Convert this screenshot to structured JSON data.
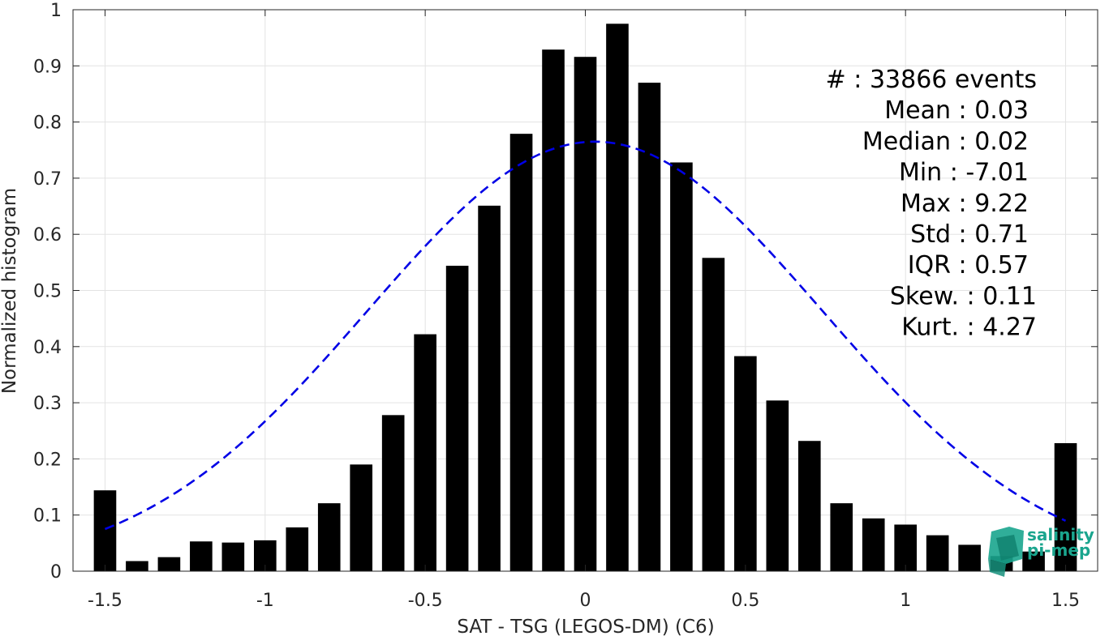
{
  "chart_data": {
    "type": "bar",
    "xlabel": "SAT - TSG (LEGOS-DM) (C6)",
    "ylabel": "Normalized histogram",
    "xlim": [
      -1.6,
      1.6
    ],
    "ylim": [
      0,
      1
    ],
    "xticks": [
      "-1.5",
      "-1",
      "-0.5",
      "0",
      "0.5",
      "1",
      "1.5"
    ],
    "yticks": [
      "0",
      "0.1",
      "0.2",
      "0.3",
      "0.4",
      "0.5",
      "0.6",
      "0.7",
      "0.8",
      "0.9",
      "1"
    ],
    "grid": true,
    "bar_width": 0.07,
    "x": [
      -1.5,
      -1.4,
      -1.3,
      -1.2,
      -1.1,
      -1.0,
      -0.9,
      -0.8,
      -0.7,
      -0.6,
      -0.5,
      -0.4,
      -0.3,
      -0.2,
      -0.1,
      0.0,
      0.1,
      0.2,
      0.3,
      0.4,
      0.5,
      0.6,
      0.7,
      0.8,
      0.9,
      1.0,
      1.1,
      1.2,
      1.3,
      1.4,
      1.5
    ],
    "values": [
      0.144,
      0.018,
      0.025,
      0.053,
      0.051,
      0.055,
      0.078,
      0.121,
      0.19,
      0.278,
      0.422,
      0.544,
      0.651,
      0.779,
      0.929,
      0.916,
      0.975,
      0.87,
      0.728,
      0.558,
      0.383,
      0.304,
      0.232,
      0.121,
      0.094,
      0.083,
      0.064,
      0.047,
      0.027,
      0.035,
      0.228
    ],
    "fit_curve": {
      "mean": 0.03,
      "std": 0.71,
      "peak": 0.765,
      "color": "#0000e6"
    },
    "bar_color": "#000000",
    "stats_lines": [
      "#  : 33866 events",
      "Mean : 0.03",
      "Median : 0.02",
      "Min : -7.01",
      "Max : 9.22",
      "Std : 0.71",
      "IQR : 0.57",
      "Skew. : 0.11",
      "Kurt. : 4.27"
    ]
  },
  "logo": {
    "line1": "salinity",
    "line2": "pi-mep",
    "color": "#1aa58e"
  }
}
